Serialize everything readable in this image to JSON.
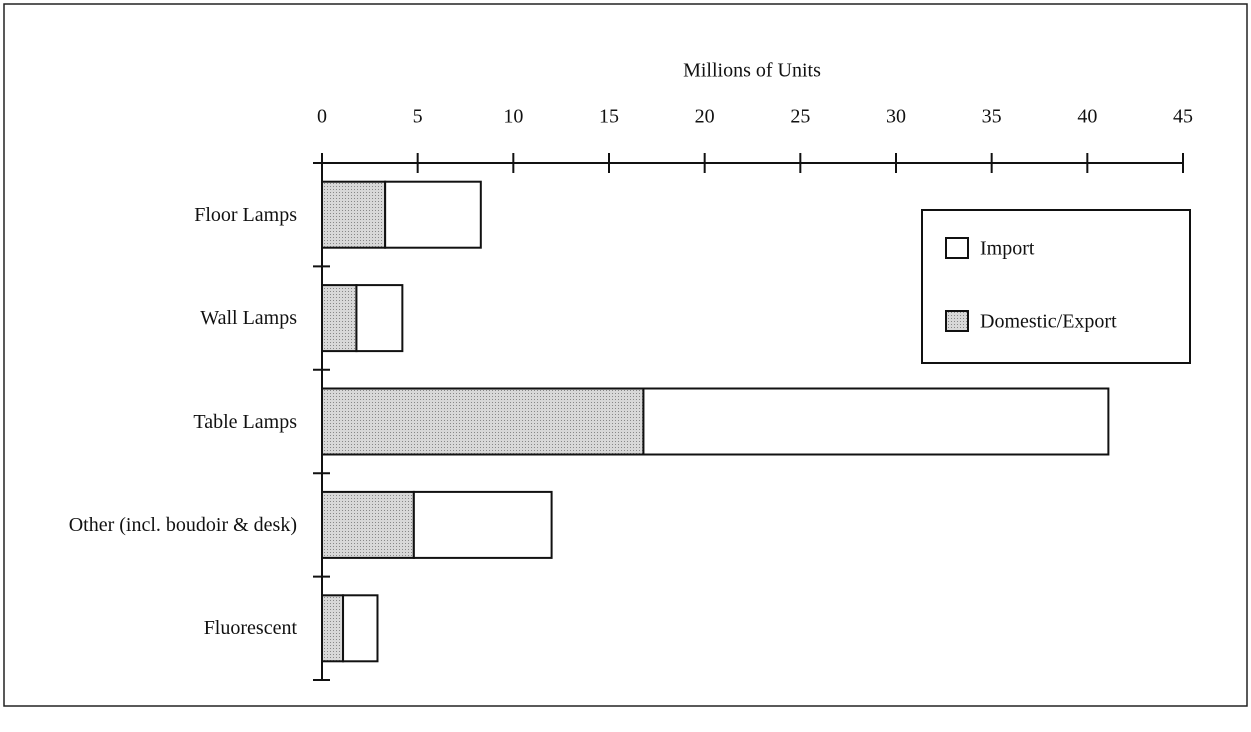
{
  "chart_data": {
    "type": "stacked_barh",
    "xlabel": "Millions of Units",
    "categories": [
      "Floor Lamps",
      "Wall Lamps",
      "Table Lamps",
      "Other (incl. boudoir & desk)",
      "Fluorescent"
    ],
    "series": [
      {
        "name": "Domestic/Export",
        "color": "#c4c4c4",
        "values": [
          3.3,
          1.8,
          16.8,
          4.8,
          1.1
        ]
      },
      {
        "name": "Import",
        "color": "#ffffff",
        "values": [
          5.0,
          2.4,
          24.3,
          7.2,
          1.8
        ]
      }
    ],
    "xlim": [
      0,
      45
    ],
    "xticks": [
      0,
      5,
      10,
      15,
      20,
      25,
      30,
      35,
      40,
      45
    ],
    "legend": "upper right"
  }
}
